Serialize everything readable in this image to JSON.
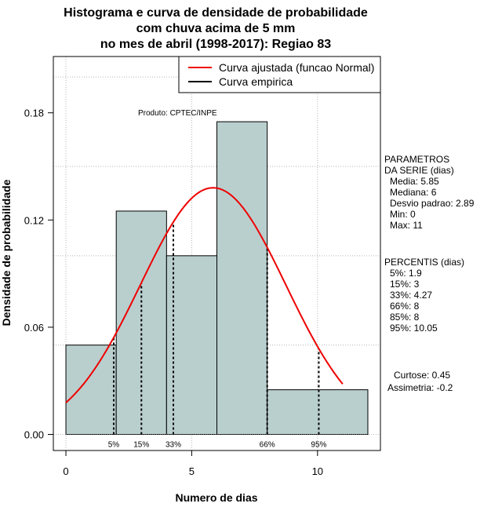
{
  "chart_data": {
    "type": "bar",
    "title_lines": [
      "Histograma e curva de densidade de probabilidade",
      "com chuva acima de 5 mm",
      "no mes de abril (1998-2017): Regiao 83"
    ],
    "xlabel": "Numero de dias",
    "ylabel": "Densidade de probabilidade",
    "xlim": [
      -0.5,
      12.5
    ],
    "ylim": [
      -0.009,
      0.2115
    ],
    "x_ticks": [
      0,
      5,
      10
    ],
    "x_tick_labels": [
      "0",
      "5",
      "10"
    ],
    "y_ticks": [
      0.0,
      0.06,
      0.12,
      0.18
    ],
    "y_tick_labels": [
      "0.00",
      "0.06",
      "0.12",
      "0.18"
    ],
    "grid_y": [
      0.05,
      0.1,
      0.15,
      0.2
    ],
    "grid_x": [
      0,
      5,
      10
    ],
    "bins": [
      {
        "start": 0,
        "end": 2,
        "density": 0.05
      },
      {
        "start": 2,
        "end": 4,
        "density": 0.125
      },
      {
        "start": 4,
        "end": 6,
        "density": 0.1
      },
      {
        "start": 6,
        "end": 8,
        "density": 0.175
      },
      {
        "start": 8,
        "end": 12,
        "density": 0.025
      }
    ],
    "curve": {
      "name": "Curva ajustada (funcao Normal)",
      "color": "#ee0000",
      "mean": 5.85,
      "sd": 2.89,
      "x_from": 0,
      "x_to": 11
    },
    "legend": [
      {
        "label": "Curva ajustada (funcao Normal)",
        "color": "#ee0000"
      },
      {
        "label": "Curva empirica",
        "color": "#000000"
      }
    ],
    "percentile_markers": [
      {
        "label": "5%",
        "x": 1.9
      },
      {
        "label": "15%",
        "x": 3
      },
      {
        "label": "33%",
        "x": 4.27
      },
      {
        "label": "66%",
        "x": 8
      },
      {
        "label": "95%",
        "x": 10.05
      }
    ],
    "product_label": "Produto: CPTEC/INPE",
    "bar_color": "#b9cfce"
  },
  "side_panel": {
    "params_title": [
      "PARAMETROS",
      "DA SERIE (dias)"
    ],
    "params": [
      "Media: 5.85",
      "Mediana: 6",
      "Desvio padrao: 2.89",
      "Min: 0",
      "Max: 11"
    ],
    "percentis_title": "PERCENTIS (dias)",
    "percentis": [
      "5%: 1.9",
      "15%: 3",
      "33%: 4.27",
      "66%: 8",
      "85%: 8",
      "95%: 10.05"
    ],
    "stats": [
      "Curtose: 0.45",
      "Assimetria: -0.2"
    ]
  }
}
